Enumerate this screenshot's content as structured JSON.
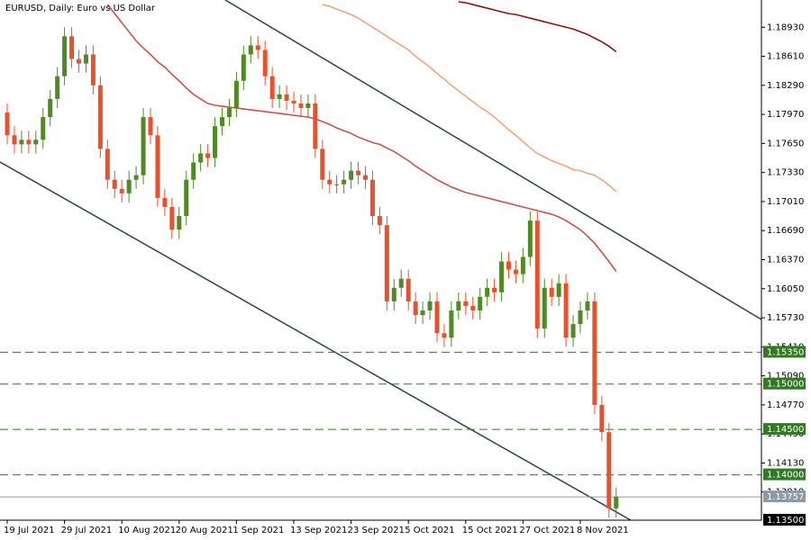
{
  "chart_data": {
    "type": "candlestick",
    "title": "EURUSD, Daily:  Euro vs US Dollar",
    "categories": [
      "19 Jul 2021",
      null,
      null,
      null,
      null,
      null,
      null,
      null,
      "29 Jul 2021",
      null,
      null,
      null,
      null,
      null,
      null,
      null,
      "10 Aug 2021",
      null,
      null,
      null,
      null,
      null,
      null,
      null,
      "20 Aug 2021",
      null,
      null,
      null,
      null,
      null,
      null,
      null,
      "1 Sep 2021",
      null,
      null,
      null,
      null,
      null,
      null,
      null,
      "13 Sep 2021",
      null,
      null,
      null,
      null,
      null,
      null,
      null,
      "23 Sep 2021",
      null,
      null,
      null,
      null,
      null,
      null,
      null,
      "5 Oct 2021",
      null,
      null,
      null,
      null,
      null,
      null,
      null,
      "15 Oct 2021",
      null,
      null,
      null,
      null,
      null,
      null,
      null,
      "27 Oct 2021",
      null,
      null,
      null,
      null,
      null,
      null,
      null,
      "8 Nov 2021",
      null,
      null,
      null,
      null,
      null
    ],
    "open": [
      1.1799,
      1.1774,
      1.1764,
      1.1769,
      1.1764,
      1.1769,
      1.1794,
      1.1814,
      1.1839,
      1.1883,
      1.1858,
      1.1853,
      1.1863,
      1.1829,
      1.1759,
      1.1725,
      1.1715,
      1.171,
      1.1725,
      1.173,
      1.1794,
      1.1774,
      1.1705,
      1.1695,
      1.167,
      1.1685,
      1.1725,
      1.1744,
      1.1754,
      1.1749,
      1.1784,
      1.1794,
      1.1804,
      1.1834,
      1.1863,
      1.1873,
      1.1868,
      1.1839,
      1.1814,
      1.1819,
      1.1812,
      1.1809,
      1.1804,
      1.1809,
      1.1759,
      1.1725,
      1.172,
      1.172,
      1.1725,
      1.1735,
      1.173,
      1.1725,
      1.1685,
      1.1675,
      1.1591,
      1.1606,
      1.1616,
      1.1591,
      1.1576,
      1.1581,
      1.1591,
      1.1556,
      1.1551,
      1.1581,
      1.1591,
      1.1586,
      1.1581,
      1.1596,
      1.1606,
      1.1601,
      1.1635,
      1.1626,
      1.1621,
      1.164,
      1.168,
      1.1561,
      1.1606,
      1.1596,
      1.1611,
      1.1551,
      1.1566,
      1.1581,
      1.1591,
      1.1477,
      1.1447,
      1.1363
    ],
    "high": [
      1.1809,
      1.1784,
      1.1779,
      1.1779,
      1.1779,
      1.1804,
      1.1824,
      1.1849,
      1.1893,
      1.1893,
      1.1868,
      1.1873,
      1.1873,
      1.1839,
      1.1769,
      1.1735,
      1.1725,
      1.1735,
      1.174,
      1.1804,
      1.1804,
      1.1784,
      1.1715,
      1.1705,
      1.1695,
      1.1735,
      1.1754,
      1.1764,
      1.1764,
      1.1794,
      1.1804,
      1.1814,
      1.1844,
      1.1873,
      1.1883,
      1.1883,
      1.1878,
      1.1849,
      1.1829,
      1.1829,
      1.1822,
      1.1819,
      1.1819,
      1.1819,
      1.1769,
      1.1735,
      1.173,
      1.1735,
      1.1745,
      1.1745,
      1.174,
      1.1735,
      1.1695,
      1.1685,
      1.1616,
      1.1626,
      1.1626,
      1.1601,
      1.1591,
      1.1601,
      1.1601,
      1.1566,
      1.1591,
      1.1601,
      1.1601,
      1.1596,
      1.1606,
      1.1616,
      1.1616,
      1.1645,
      1.1645,
      1.1636,
      1.165,
      1.169,
      1.169,
      1.1616,
      1.1616,
      1.1621,
      1.1621,
      1.1576,
      1.1591,
      1.1601,
      1.1601,
      1.1487,
      1.1457,
      1.1386
    ],
    "low": [
      1.1764,
      1.1754,
      1.1754,
      1.1754,
      1.1754,
      1.1759,
      1.1784,
      1.1804,
      1.1829,
      1.1848,
      1.1843,
      1.1843,
      1.1819,
      1.1749,
      1.1715,
      1.1705,
      1.17,
      1.17,
      1.1715,
      1.172,
      1.1764,
      1.1695,
      1.1685,
      1.166,
      1.166,
      1.1675,
      1.1715,
      1.1734,
      1.1739,
      1.1739,
      1.1774,
      1.1784,
      1.1794,
      1.1824,
      1.1853,
      1.1858,
      1.1829,
      1.1804,
      1.1804,
      1.1802,
      1.1799,
      1.1794,
      1.1794,
      1.1749,
      1.1715,
      1.171,
      1.171,
      1.171,
      1.1715,
      1.172,
      1.1715,
      1.1675,
      1.1665,
      1.1581,
      1.1581,
      1.1596,
      1.1581,
      1.1566,
      1.1566,
      1.1571,
      1.1546,
      1.1541,
      1.1541,
      1.1571,
      1.1576,
      1.1571,
      1.1571,
      1.1586,
      1.1591,
      1.1591,
      1.1616,
      1.1611,
      1.1611,
      1.163,
      1.1551,
      1.1551,
      1.1586,
      1.1586,
      1.1541,
      1.1541,
      1.1556,
      1.1571,
      1.1467,
      1.1437,
      1.1353,
      1.1353
    ],
    "close": [
      1.1774,
      1.1764,
      1.1769,
      1.1764,
      1.1769,
      1.1794,
      1.1814,
      1.1839,
      1.1883,
      1.1858,
      1.1853,
      1.1863,
      1.1829,
      1.1759,
      1.1725,
      1.1715,
      1.171,
      1.1725,
      1.173,
      1.1794,
      1.1774,
      1.1705,
      1.1695,
      1.167,
      1.1685,
      1.1725,
      1.1744,
      1.1754,
      1.1749,
      1.1784,
      1.1794,
      1.1804,
      1.1834,
      1.1863,
      1.1873,
      1.1868,
      1.1839,
      1.1814,
      1.1819,
      1.1812,
      1.1809,
      1.1804,
      1.1809,
      1.1759,
      1.1725,
      1.172,
      1.172,
      1.1725,
      1.1735,
      1.173,
      1.1725,
      1.1685,
      1.1675,
      1.1591,
      1.1606,
      1.1616,
      1.1591,
      1.1576,
      1.1581,
      1.1591,
      1.1556,
      1.1551,
      1.1581,
      1.1591,
      1.1586,
      1.1581,
      1.1596,
      1.1606,
      1.1601,
      1.1635,
      1.1626,
      1.1621,
      1.164,
      1.168,
      1.1561,
      1.1606,
      1.1596,
      1.1611,
      1.1551,
      1.1566,
      1.1581,
      1.1591,
      1.1477,
      1.1447,
      1.1363,
      1.1376
    ],
    "up_color": "#4f8a24",
    "down_color": "#e8512d",
    "moving_averages": [
      {
        "color": "#c9534c",
        "values": [
          null,
          null,
          null,
          null,
          null,
          null,
          null,
          null,
          null,
          null,
          null,
          null,
          null,
          null,
          1.1918,
          1.1908,
          1.1898,
          1.1888,
          1.1878,
          1.187,
          1.1863,
          1.1855,
          1.1849,
          1.1841,
          1.1834,
          1.1826,
          1.1819,
          1.1814,
          1.1809,
          1.1807,
          1.1806,
          1.1805,
          1.1804,
          1.1803,
          1.1802,
          1.1801,
          1.18,
          1.1799,
          1.1798,
          1.1797,
          1.1796,
          1.1795,
          1.1794,
          1.1792,
          1.1789,
          1.1786,
          1.1782,
          1.1779,
          1.1776,
          1.1772,
          1.1769,
          1.1766,
          1.1764,
          1.176,
          1.1756,
          1.1751,
          1.1746,
          1.174,
          1.1735,
          1.173,
          1.1725,
          1.1721,
          1.1717,
          1.1714,
          1.1711,
          1.1709,
          1.1707,
          1.1705,
          1.1703,
          1.1701,
          1.1699,
          1.1697,
          1.1695,
          1.1693,
          1.1691,
          1.1689,
          1.1687,
          1.1684,
          1.168,
          1.1675,
          1.167,
          1.1663,
          1.1655,
          1.1645,
          1.1635,
          1.1624
        ]
      },
      {
        "color": "#f4a47e",
        "values": [
          null,
          null,
          null,
          null,
          null,
          null,
          null,
          null,
          null,
          null,
          null,
          null,
          null,
          null,
          null,
          null,
          null,
          null,
          null,
          null,
          null,
          null,
          null,
          null,
          null,
          null,
          null,
          null,
          null,
          null,
          null,
          null,
          null,
          null,
          null,
          null,
          null,
          null,
          null,
          null,
          null,
          null,
          null,
          null,
          1.1918,
          1.1916,
          1.1913,
          1.191,
          1.1907,
          1.1903,
          1.1898,
          1.1893,
          1.1888,
          1.1883,
          1.1878,
          1.1873,
          1.1868,
          1.1861,
          1.1855,
          1.1849,
          1.1842,
          1.1836,
          1.1829,
          1.1823,
          1.1817,
          1.1811,
          1.1805,
          1.18,
          1.1794,
          1.1787,
          1.178,
          1.1774,
          1.1767,
          1.176,
          1.1754,
          1.175,
          1.1746,
          1.1743,
          1.174,
          1.1736,
          1.1735,
          1.1732,
          1.173,
          1.1725,
          1.1719,
          1.1712
        ]
      },
      {
        "color": "#8b1515",
        "values": [
          null,
          null,
          null,
          null,
          null,
          null,
          null,
          null,
          null,
          null,
          null,
          null,
          null,
          null,
          null,
          null,
          null,
          null,
          null,
          null,
          null,
          null,
          null,
          null,
          null,
          null,
          null,
          null,
          null,
          null,
          null,
          null,
          null,
          null,
          null,
          null,
          null,
          null,
          null,
          null,
          null,
          null,
          null,
          null,
          null,
          null,
          null,
          null,
          null,
          null,
          null,
          null,
          null,
          null,
          null,
          null,
          null,
          null,
          null,
          null,
          null,
          null,
          null,
          1.1921,
          1.192,
          1.1918,
          1.1916,
          1.1914,
          1.1912,
          1.191,
          1.1908,
          1.1907,
          1.1905,
          1.1903,
          1.1901,
          1.1899,
          1.1897,
          1.1895,
          1.1893,
          1.1891,
          1.1888,
          1.1885,
          1.1881,
          1.1877,
          1.1872,
          1.1866
        ]
      }
    ],
    "ylim": [
      1.135,
      1.1923
    ],
    "yticks": [
      {
        "value": 1.1893,
        "label": "1.18930"
      },
      {
        "value": 1.1861,
        "label": "1.18610"
      },
      {
        "value": 1.1829,
        "label": "1.18290"
      },
      {
        "value": 1.1797,
        "label": "1.17970"
      },
      {
        "value": 1.1765,
        "label": "1.17650"
      },
      {
        "value": 1.1733,
        "label": "1.17330"
      },
      {
        "value": 1.1701,
        "label": "1.17010"
      },
      {
        "value": 1.1669,
        "label": "1.16690"
      },
      {
        "value": 1.1637,
        "label": "1.16370"
      },
      {
        "value": 1.1605,
        "label": "1.16050"
      },
      {
        "value": 1.1573,
        "label": "1.15730"
      },
      {
        "value": 1.1541,
        "label": "1.15410"
      },
      {
        "value": 1.1509,
        "label": "1.15090"
      },
      {
        "value": 1.1477,
        "label": "1.14770"
      },
      {
        "value": 1.1445,
        "label": "1.14450"
      },
      {
        "value": 1.1413,
        "label": "1.14130"
      },
      {
        "value": 1.1381,
        "label": "1.13810"
      }
    ],
    "levels": [
      {
        "value": 1.1535,
        "label": "1.15350",
        "color": "#2f7a22",
        "line": "dashed"
      },
      {
        "value": 1.15,
        "label": "1.15000",
        "color": "#2f7a22",
        "line": "dashed"
      },
      {
        "value": 1.145,
        "label": "1.14500",
        "color": "#2f7a22",
        "line": "dashed"
      },
      {
        "value": 1.14,
        "label": "1.14000",
        "color": "#2f7a22",
        "line": "dashed"
      },
      {
        "value": 1.13757,
        "label": "1.13757",
        "color": "#8c9aa5",
        "line": "solid"
      },
      {
        "value": 1.135,
        "label": "1.13500",
        "color": "#000000",
        "line": "solid"
      }
    ]
  }
}
